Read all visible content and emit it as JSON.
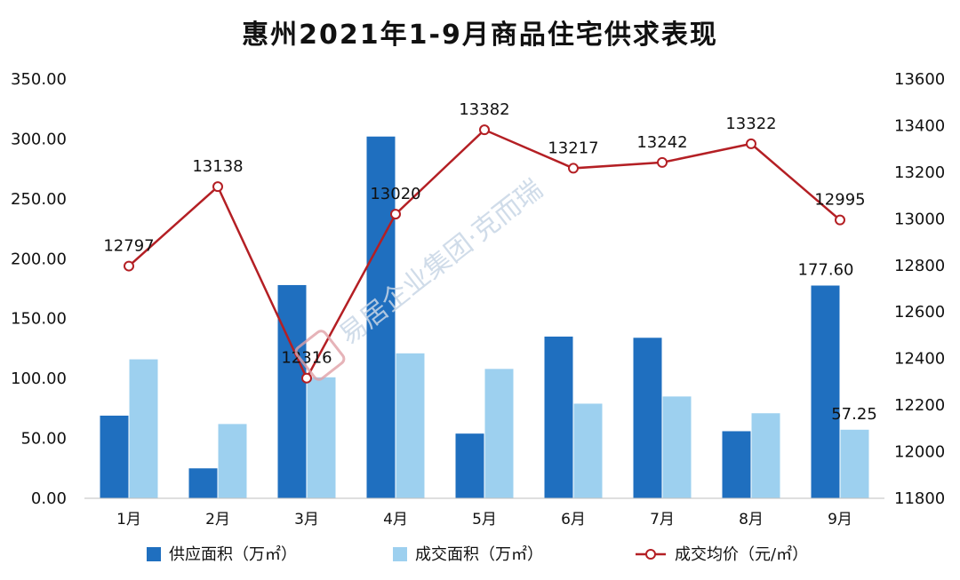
{
  "chart_data": {
    "type": "bar",
    "title": "惠州2021年1-9月商品住宅供求表现",
    "categories": [
      "1月",
      "2月",
      "3月",
      "4月",
      "5月",
      "6月",
      "7月",
      "8月",
      "9月"
    ],
    "series": [
      {
        "name": "供应面积（万㎡）",
        "type": "bar",
        "axis": "left",
        "color": "#1f6fbf",
        "values": [
          69,
          25,
          178,
          302,
          54,
          135,
          134,
          56,
          177.6
        ]
      },
      {
        "name": "成交面积（万㎡）",
        "type": "bar",
        "axis": "left",
        "color": "#9dd0ef",
        "values": [
          116,
          62,
          101,
          121,
          108,
          79,
          85,
          71,
          57.25
        ]
      },
      {
        "name": "成交均价（元/㎡）",
        "type": "line",
        "axis": "right",
        "color": "#b41f24",
        "values": [
          12797,
          13138,
          12316,
          13020,
          13382,
          13217,
          13242,
          13322,
          12995
        ]
      }
    ],
    "left_axis": {
      "min": 0,
      "max": 350,
      "ticks": [
        "0.00",
        "50.00",
        "100.00",
        "150.00",
        "200.00",
        "250.00",
        "300.00",
        "350.00"
      ]
    },
    "right_axis": {
      "min": 11800,
      "max": 13600,
      "ticks": [
        "11800",
        "12000",
        "12200",
        "12400",
        "12600",
        "12800",
        "13000",
        "13200",
        "13400",
        "13600"
      ]
    },
    "bar_data_labels": [
      {
        "series": 0,
        "index": 8,
        "text": "177.60"
      },
      {
        "series": 1,
        "index": 8,
        "text": "57.25"
      }
    ],
    "line_data_labels": [
      "12797",
      "13138",
      "12316",
      "13020",
      "13382",
      "13217",
      "13242",
      "13322",
      "12995"
    ],
    "legend_position": "bottom",
    "grid": false
  },
  "watermark": "易居企业集团·克而瑞"
}
